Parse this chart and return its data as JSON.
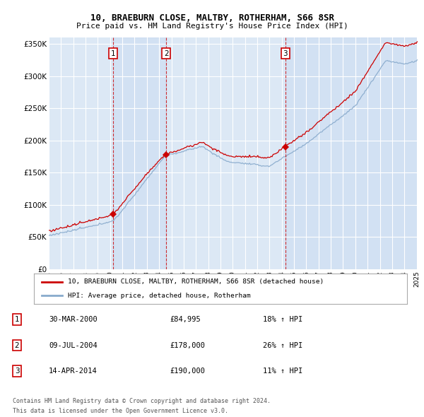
{
  "title": "10, BRAEBURN CLOSE, MALTBY, ROTHERHAM, S66 8SR",
  "subtitle": "Price paid vs. HM Land Registry's House Price Index (HPI)",
  "ylim": [
    0,
    360000
  ],
  "yticks": [
    0,
    50000,
    100000,
    150000,
    200000,
    250000,
    300000,
    350000
  ],
  "ytick_labels": [
    "£0",
    "£50K",
    "£100K",
    "£150K",
    "£200K",
    "£250K",
    "£300K",
    "£350K"
  ],
  "background_color": "#ffffff",
  "plot_bg_color": "#dce8f5",
  "grid_color": "#ffffff",
  "sale_year_nums": [
    2000.25,
    2004.583,
    2014.292
  ],
  "sale_prices": [
    84995,
    178000,
    190000
  ],
  "sale_labels": [
    "1",
    "2",
    "3"
  ],
  "legend_line1": "10, BRAEBURN CLOSE, MALTBY, ROTHERHAM, S66 8SR (detached house)",
  "legend_line2": "HPI: Average price, detached house, Rotherham",
  "table_data": [
    [
      "1",
      "30-MAR-2000",
      "£84,995",
      "18% ↑ HPI"
    ],
    [
      "2",
      "09-JUL-2004",
      "£178,000",
      "26% ↑ HPI"
    ],
    [
      "3",
      "14-APR-2014",
      "£190,000",
      "11% ↑ HPI"
    ]
  ],
  "footer_line1": "Contains HM Land Registry data © Crown copyright and database right 2024.",
  "footer_line2": "This data is licensed under the Open Government Licence v3.0.",
  "red_color": "#cc0000",
  "blue_color": "#88aacc"
}
